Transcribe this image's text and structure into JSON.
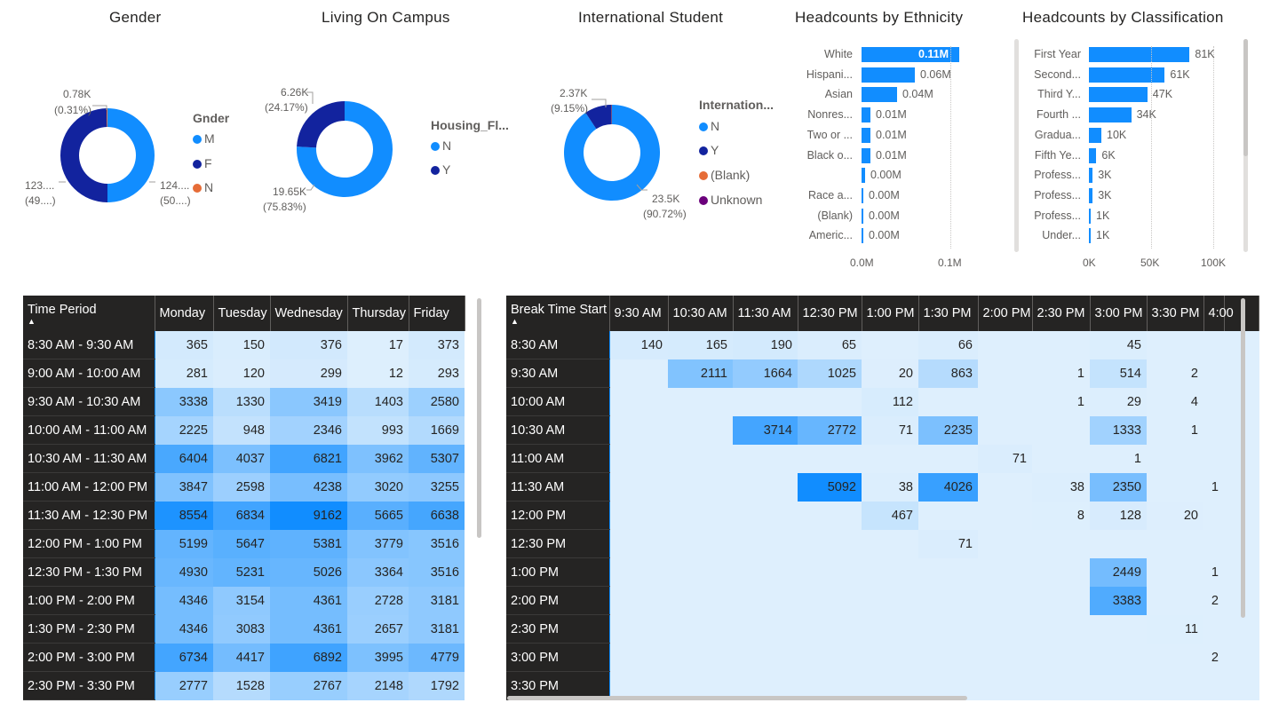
{
  "gender": {
    "title": "Gender",
    "legend_title": "Gnder",
    "legend": [
      {
        "label": "M",
        "color": "#118dff"
      },
      {
        "label": "F",
        "color": "#12239e"
      },
      {
        "label": "N",
        "color": "#e66c37"
      }
    ],
    "slices": [
      {
        "value": 50.0,
        "color": "#118dff"
      },
      {
        "value": 49.69,
        "color": "#12239e"
      },
      {
        "value": 0.31,
        "color": "#e66c37"
      }
    ],
    "labels": {
      "n_value": "0.78K",
      "n_pct": "(0.31%)",
      "f_value": "123....",
      "f_pct": "(49....)",
      "m_value": "124....",
      "m_pct": "(50....)"
    }
  },
  "living": {
    "title": "Living On Campus",
    "legend_title": "Housing_Fl...",
    "legend": [
      {
        "label": "N",
        "color": "#118dff"
      },
      {
        "label": "Y",
        "color": "#12239e"
      }
    ],
    "slices": [
      {
        "value": 75.83,
        "color": "#118dff"
      },
      {
        "value": 24.17,
        "color": "#12239e"
      }
    ],
    "labels": {
      "y_value": "6.26K",
      "y_pct": "(24.17%)",
      "n_value": "19.65K",
      "n_pct": "(75.83%)"
    }
  },
  "international": {
    "title": "International Student",
    "legend_title": "Internation...",
    "legend": [
      {
        "label": "N",
        "color": "#118dff"
      },
      {
        "label": "Y",
        "color": "#12239e"
      },
      {
        "label": "(Blank)",
        "color": "#e66c37"
      },
      {
        "label": "Unknown",
        "color": "#6b007b"
      }
    ],
    "slices": [
      {
        "value": 90.72,
        "color": "#118dff"
      },
      {
        "value": 9.15,
        "color": "#12239e"
      },
      {
        "value": 0.13,
        "color": "#e66c37"
      }
    ],
    "labels": {
      "y_value": "2.37K",
      "y_pct": "(9.15%)",
      "n_value": "23.5K",
      "n_pct": "(90.72%)"
    }
  },
  "chart_data": [
    {
      "type": "bar",
      "title": "Headcounts by Ethnicity",
      "categories": [
        "White",
        "Hispani...",
        "Asian",
        "Nonres...",
        "Two or ...",
        "Black o...",
        "",
        "Race a...",
        "(Blank)",
        "Americ..."
      ],
      "values": [
        0.11,
        0.06,
        0.04,
        0.01,
        0.01,
        0.01,
        0.004,
        0.001,
        0.001,
        0.0015
      ],
      "value_labels": [
        "0.11M",
        "0.06M",
        "0.04M",
        "0.01M",
        "0.01M",
        "0.01M",
        "0.00M",
        "0.00M",
        "0.00M",
        "0.00M"
      ],
      "xticks": [
        "0.0M",
        "0.1M"
      ],
      "xlim": [
        0,
        0.1
      ]
    },
    {
      "type": "bar",
      "title": "Headcounts by Classification",
      "categories": [
        "First Year",
        "Second...",
        "Third Y...",
        "Fourth ...",
        "Gradua...",
        "Fifth Ye...",
        "Profess...",
        "Profess...",
        "Profess...",
        "Under..."
      ],
      "values": [
        81,
        61,
        47,
        34,
        10,
        6,
        3,
        3,
        1,
        1
      ],
      "value_labels": [
        "81K",
        "61K",
        "47K",
        "34K",
        "10K",
        "6K",
        "3K",
        "3K",
        "1K",
        "1K"
      ],
      "xticks": [
        "0K",
        "50K",
        "100K"
      ],
      "xlim": [
        0,
        100
      ]
    }
  ],
  "matrix1": {
    "corner": "Time Period",
    "columns": [
      "Monday",
      "Tuesday",
      "Wednesday",
      "Thursday",
      "Friday"
    ],
    "rows": [
      {
        "label": "8:30 AM - 9:30 AM",
        "values": [
          "365",
          "150",
          "376",
          "17",
          "373"
        ]
      },
      {
        "label": "9:00 AM - 10:00 AM",
        "values": [
          "281",
          "120",
          "299",
          "12",
          "293"
        ]
      },
      {
        "label": "9:30 AM - 10:30 AM",
        "values": [
          "3338",
          "1330",
          "3419",
          "1403",
          "2580"
        ]
      },
      {
        "label": "10:00 AM - 11:00 AM",
        "values": [
          "2225",
          "948",
          "2346",
          "993",
          "1669"
        ]
      },
      {
        "label": "10:30 AM - 11:30 AM",
        "values": [
          "6404",
          "4037",
          "6821",
          "3962",
          "5307"
        ]
      },
      {
        "label": "11:00 AM - 12:00 PM",
        "values": [
          "3847",
          "2598",
          "4238",
          "3020",
          "3255"
        ]
      },
      {
        "label": "11:30 AM - 12:30 PM",
        "values": [
          "8554",
          "6834",
          "9162",
          "5665",
          "6638"
        ]
      },
      {
        "label": "12:00 PM - 1:00 PM",
        "values": [
          "5199",
          "5647",
          "5381",
          "3779",
          "3516"
        ]
      },
      {
        "label": "12:30 PM - 1:30 PM",
        "values": [
          "4930",
          "5231",
          "5026",
          "3364",
          "3516"
        ]
      },
      {
        "label": "1:00 PM - 2:00 PM",
        "values": [
          "4346",
          "3154",
          "4361",
          "2728",
          "3181"
        ]
      },
      {
        "label": "1:30 PM - 2:30 PM",
        "values": [
          "4346",
          "3083",
          "4361",
          "2657",
          "3181"
        ]
      },
      {
        "label": "2:00 PM - 3:00 PM",
        "values": [
          "6734",
          "4417",
          "6892",
          "3995",
          "4779"
        ]
      },
      {
        "label": "2:30 PM - 3:30 PM",
        "values": [
          "2777",
          "1528",
          "2767",
          "2148",
          "1792"
        ]
      }
    ]
  },
  "matrix2": {
    "corner": "Break Time Start",
    "columns": [
      "9:30 AM",
      "10:30 AM",
      "11:30 AM",
      "12:30 PM",
      "1:00 PM",
      "1:30 PM",
      "2:00 PM",
      "2:30 PM",
      "3:00 PM",
      "3:30 PM",
      "4:00"
    ],
    "rows": [
      {
        "label": "8:30 AM",
        "values": [
          "140",
          "165",
          "190",
          "65",
          "",
          "66",
          "",
          "",
          "45",
          "",
          ""
        ]
      },
      {
        "label": "9:30 AM",
        "values": [
          "",
          "2111",
          "1664",
          "1025",
          "20",
          "863",
          "",
          "1",
          "514",
          "2",
          ""
        ]
      },
      {
        "label": "10:00 AM",
        "values": [
          "",
          "",
          "",
          "",
          "112",
          "",
          "",
          "1",
          "29",
          "4",
          ""
        ]
      },
      {
        "label": "10:30 AM",
        "values": [
          "",
          "",
          "3714",
          "2772",
          "71",
          "2235",
          "",
          "",
          "1333",
          "1",
          ""
        ]
      },
      {
        "label": "11:00 AM",
        "values": [
          "",
          "",
          "",
          "",
          "",
          "",
          "71",
          "",
          "1",
          "",
          ""
        ]
      },
      {
        "label": "11:30 AM",
        "values": [
          "",
          "",
          "",
          "5092",
          "38",
          "4026",
          "",
          "38",
          "2350",
          "",
          "1"
        ]
      },
      {
        "label": "12:00 PM",
        "values": [
          "",
          "",
          "",
          "",
          "467",
          "",
          "",
          "8",
          "128",
          "20",
          ""
        ]
      },
      {
        "label": "12:30 PM",
        "values": [
          "",
          "",
          "",
          "",
          "",
          "71",
          "",
          "",
          "",
          "",
          ""
        ]
      },
      {
        "label": "1:00 PM",
        "values": [
          "",
          "",
          "",
          "",
          "",
          "",
          "",
          "",
          "2449",
          "",
          "1"
        ]
      },
      {
        "label": "2:00 PM",
        "values": [
          "",
          "",
          "",
          "",
          "",
          "",
          "",
          "",
          "3383",
          "",
          "2"
        ]
      },
      {
        "label": "2:30 PM",
        "values": [
          "",
          "",
          "",
          "",
          "",
          "",
          "",
          "",
          "",
          "11",
          ""
        ]
      },
      {
        "label": "3:00 PM",
        "values": [
          "",
          "",
          "",
          "",
          "",
          "",
          "",
          "",
          "",
          "",
          "2"
        ]
      },
      {
        "label": "3:30 PM",
        "values": [
          "",
          "",
          "",
          "",
          "",
          "",
          "",
          "",
          "",
          "",
          ""
        ]
      }
    ]
  }
}
